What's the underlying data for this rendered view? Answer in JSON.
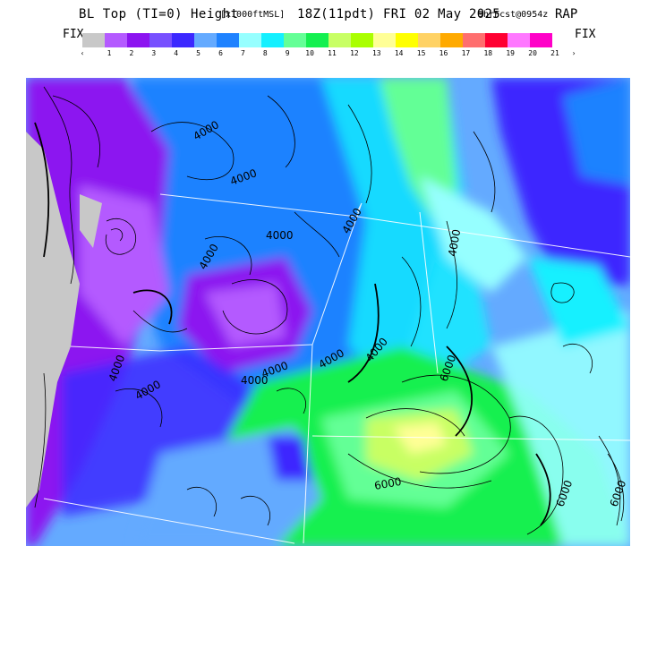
{
  "title": {
    "main": "BL Top (TI=0) Height",
    "units": "[x1000ftMSL]",
    "valid_time": "18Z(11pdt) FRI 02 May 2025",
    "forecast": "9hrFcst@0954z",
    "model": "RAP"
  },
  "legend": {
    "fix_left": "FIX",
    "fix_right": "FIX",
    "arrow_left": "‹",
    "arrow_right": "›",
    "labels": [
      "1",
      "2",
      "3",
      "4",
      "5",
      "6",
      "7",
      "8",
      "9",
      "10",
      "11",
      "12",
      "13",
      "14",
      "15",
      "16",
      "17",
      "18",
      "19",
      "20",
      "21"
    ],
    "colors": [
      "#c8c8c8",
      "#b45aff",
      "#8c14f0",
      "#7850ff",
      "#3c28ff",
      "#64aaff",
      "#1e82ff",
      "#96ffff",
      "#14f0ff",
      "#64ff96",
      "#14f050",
      "#c8ff64",
      "#aaff00",
      "#ffff96",
      "#ffff00",
      "#ffd264",
      "#ffaa00",
      "#ff6e6e",
      "#ff0032",
      "#ff78ff",
      "#ff00c8"
    ]
  },
  "map": {
    "contour_labels": [
      "4000",
      "4000",
      "4000",
      "4000",
      "4000",
      "4000",
      "4000",
      "4000",
      "4000",
      "4000",
      "6000",
      "4000",
      "6000",
      "4000",
      "6000",
      "6000"
    ],
    "colors": {
      "ocean": "#c8c8c8",
      "contour": "#000000",
      "border": "#ffffff"
    }
  }
}
